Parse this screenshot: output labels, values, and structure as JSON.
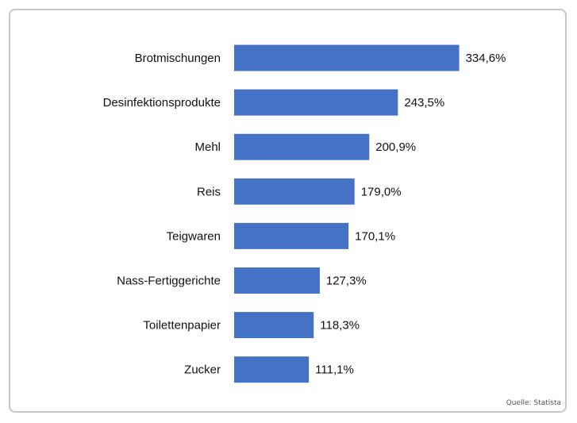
{
  "chart_data": {
    "type": "bar",
    "orientation": "horizontal",
    "categories": [
      "Brotmischungen",
      "Desinfektionsprodukte",
      "Mehl",
      "Reis",
      "Teigwaren",
      "Nass-Fertiggerichte",
      "Toilettenpapier",
      "Zucker"
    ],
    "values": [
      334.6,
      243.5,
      200.9,
      179.0,
      170.1,
      127.3,
      118.3,
      111.1
    ],
    "value_labels": [
      "334,6%",
      "243,5%",
      "200,9%",
      "179,0%",
      "170,1%",
      "127,3%",
      "118,3%",
      "111,1%"
    ],
    "bar_color": "#4472c4",
    "grid": false,
    "legend": "none"
  },
  "source": "Quelle: Statista"
}
